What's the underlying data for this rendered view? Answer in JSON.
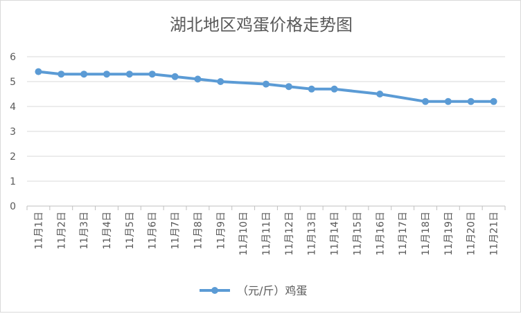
{
  "chart_data": {
    "type": "line",
    "title": "湖北地区鸡蛋价格走势图",
    "categories": [
      "11月1日",
      "11月2日",
      "11月3日",
      "11月4日",
      "11月5日",
      "11月6日",
      "11月7日",
      "11月8日",
      "11月9日",
      "11月10日",
      "11月11日",
      "11月12日",
      "11月13日",
      "11月14日",
      "11月15日",
      "11月16日",
      "11月17日",
      "11月18日",
      "11月19日",
      "11月20日",
      "11月21日"
    ],
    "series": [
      {
        "name": "（元/斤）鸡蛋",
        "values": [
          5.4,
          5.3,
          5.3,
          5.3,
          5.3,
          5.3,
          5.2,
          5.1,
          5.0,
          null,
          4.9,
          4.8,
          4.7,
          4.7,
          null,
          4.5,
          null,
          4.2,
          4.2,
          4.2,
          4.2
        ],
        "color": "#5b9bd5"
      }
    ],
    "ylim": [
      0,
      6
    ],
    "yticks": [
      0,
      1,
      2,
      3,
      4,
      5,
      6
    ],
    "grid": true,
    "legend": "bottom"
  }
}
